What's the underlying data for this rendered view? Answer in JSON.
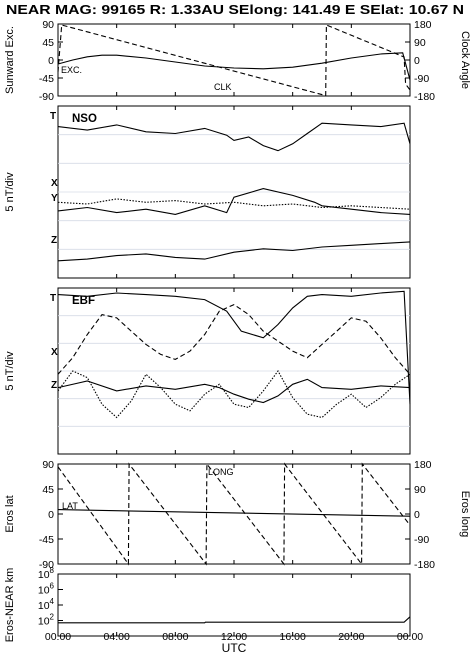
{
  "header": "NEAR MAG: 99165  R: 1.33AU  SElong:  141.49 E  SElat:   10.67 N",
  "x_axis": {
    "label": "UTC",
    "ticks": [
      "00:00",
      "04:00",
      "08:00",
      "12:00",
      "16:00",
      "20:00",
      "00:00"
    ],
    "range_hours": [
      0,
      24
    ]
  },
  "chart_data": [
    {
      "type": "line",
      "ylabel_left": "Sunward Exc.",
      "ylabel_right": "Clock Angle",
      "yticks_left": [
        "90",
        "45",
        "0",
        "-45",
        "-90"
      ],
      "yticks_right": [
        "180",
        "90",
        "0",
        "-90",
        "-180"
      ],
      "ylim_left": [
        -90,
        90
      ],
      "ylim_right": [
        -180,
        180
      ],
      "series": [
        {
          "name": "EXC.",
          "style": "solid",
          "axis": "left",
          "x": [
            0,
            1,
            2,
            3,
            4,
            6,
            8,
            10,
            12,
            14,
            16,
            18,
            20,
            22,
            23.5,
            24
          ],
          "y": [
            -10,
            0,
            8,
            12,
            12,
            5,
            -5,
            -15,
            -20,
            -22,
            -18,
            -8,
            5,
            15,
            18,
            -50
          ]
        },
        {
          "name": "CLK",
          "style": "dashed",
          "axis": "right",
          "x": [
            0,
            0.25,
            18.25,
            18.3,
            23.6,
            23.7,
            24
          ],
          "y": [
            -60,
            175,
            -178,
            175,
            15,
            -120,
            -150
          ]
        }
      ]
    },
    {
      "type": "line",
      "title": "NSO",
      "ylabel": "5 nT/div",
      "series": [
        {
          "name": "T",
          "style": "solid",
          "x": [
            0,
            2,
            4,
            6,
            8,
            10,
            11.5,
            12,
            13,
            14,
            15,
            16,
            17,
            18,
            20,
            22,
            23.6,
            24
          ],
          "y": [
            88,
            86,
            89,
            85,
            84,
            87,
            83,
            80,
            82,
            77,
            74,
            78,
            84,
            90,
            89,
            88,
            90,
            78
          ]
        },
        {
          "name": "X",
          "style": "dotted",
          "x": [
            0,
            2,
            4,
            6,
            8,
            10,
            12,
            14,
            16,
            18,
            20,
            22,
            24
          ],
          "y": [
            44,
            43,
            46,
            44,
            45,
            43,
            44,
            42,
            43,
            41,
            42,
            41,
            40
          ]
        },
        {
          "name": "Y",
          "style": "solid",
          "x": [
            0,
            2,
            4,
            6,
            8,
            10,
            11.5,
            12,
            14,
            16,
            17.5,
            18,
            20,
            22,
            24
          ],
          "y": [
            39,
            41,
            38,
            40,
            37,
            42,
            38,
            47,
            52,
            48,
            44,
            42,
            40,
            38,
            37
          ]
        },
        {
          "name": "Z",
          "style": "solid",
          "x": [
            0,
            2,
            4,
            6,
            8,
            10,
            12,
            14,
            16,
            18,
            20,
            22,
            24
          ],
          "y": [
            10,
            11,
            13,
            14,
            12,
            11,
            15,
            17,
            16,
            18,
            19,
            20,
            21
          ]
        }
      ]
    },
    {
      "type": "line",
      "title": "EBF",
      "ylabel": "5 nT/div",
      "series": [
        {
          "name": "T",
          "style": "solid",
          "x": [
            0,
            2,
            4,
            6,
            8,
            10,
            11.5,
            12.5,
            14,
            15,
            16,
            17,
            18,
            20,
            22,
            23.6,
            24
          ],
          "y": [
            96,
            95,
            97,
            96,
            95,
            93,
            86,
            74,
            70,
            78,
            88,
            95,
            96,
            95,
            97,
            98,
            30
          ]
        },
        {
          "name": "X",
          "style": "dashed",
          "x": [
            0,
            1,
            2,
            3,
            4,
            5,
            6,
            7,
            8,
            9,
            10,
            11,
            12,
            13,
            14,
            15,
            16,
            17,
            18,
            19,
            20,
            21,
            22,
            23,
            24
          ],
          "y": [
            48,
            58,
            72,
            84,
            82,
            74,
            66,
            60,
            57,
            62,
            72,
            86,
            90,
            84,
            74,
            68,
            62,
            58,
            66,
            74,
            82,
            80,
            70,
            58,
            48
          ]
        },
        {
          "name": "Y",
          "style": "dotted",
          "x": [
            0,
            1,
            2,
            3,
            4,
            5,
            6,
            7,
            8,
            9,
            10,
            11,
            12,
            13,
            14,
            15,
            16,
            17,
            18,
            19,
            20,
            21,
            22,
            23,
            24
          ],
          "y": [
            38,
            50,
            46,
            30,
            22,
            32,
            48,
            40,
            30,
            26,
            36,
            42,
            30,
            28,
            38,
            50,
            34,
            24,
            22,
            30,
            36,
            28,
            34,
            42,
            48
          ]
        },
        {
          "name": "Z",
          "style": "solid",
          "x": [
            0,
            2,
            4,
            6,
            8,
            10,
            11,
            12,
            13,
            14,
            15,
            16,
            17,
            18,
            20,
            22,
            24
          ],
          "y": [
            40,
            44,
            38,
            41,
            39,
            42,
            40,
            36,
            33,
            31,
            35,
            42,
            45,
            40,
            39,
            41,
            40
          ]
        }
      ]
    },
    {
      "type": "line",
      "ylabel_left": "Eros lat",
      "ylabel_right": "Eros long",
      "yticks_left": [
        "90",
        "45",
        "0",
        "-45",
        "-90"
      ],
      "yticks_right": [
        "180",
        "90",
        "0",
        "-90",
        "-180"
      ],
      "ylim_left": [
        -90,
        90
      ],
      "ylim_right": [
        -180,
        180
      ],
      "series": [
        {
          "name": "LAT",
          "style": "solid",
          "axis": "left",
          "x": [
            0,
            24
          ],
          "y": [
            8,
            -4
          ]
        },
        {
          "name": "LONG",
          "style": "dashed",
          "axis": "right",
          "x": [
            0,
            4.8,
            4.85,
            10.1,
            10.15,
            15.4,
            15.45,
            20.7,
            20.75,
            24
          ],
          "y": [
            170,
            -180,
            180,
            -180,
            180,
            -180,
            180,
            -180,
            180,
            -40
          ]
        }
      ]
    },
    {
      "type": "line",
      "ylabel": "Eros-NEAR km",
      "yscale": "log",
      "yticks": [
        "10^2",
        "10^4",
        "10^6",
        "10^8"
      ],
      "ylim": [
        1,
        100000000
      ],
      "series": [
        {
          "name": "",
          "style": "solid",
          "x": [
            0,
            10,
            10.05,
            23.6,
            24
          ],
          "y": [
            50,
            50,
            60,
            60,
            300
          ]
        }
      ]
    }
  ]
}
